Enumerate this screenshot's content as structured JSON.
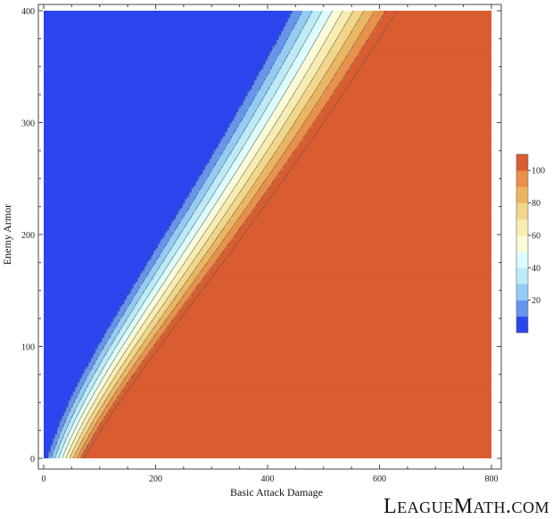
{
  "chart_data": {
    "type": "contour",
    "xlabel": "Basic Attack Damage",
    "ylabel": "Enemy Armor",
    "xlim": [
      0,
      800
    ],
    "ylim": [
      0,
      400
    ],
    "x_ticks": [
      0,
      200,
      400,
      600,
      800
    ],
    "y_ticks": [
      0,
      100,
      200,
      300,
      400
    ],
    "contour_levels": [
      10,
      20,
      30,
      40,
      50,
      60,
      70,
      80,
      90,
      100,
      110
    ],
    "legend_tick_labels": [
      20,
      40,
      60,
      80,
      100
    ],
    "legend_placement": "right",
    "grid": false,
    "band_colors": [
      "#2b45ee",
      "#6695ee",
      "#93ccf5",
      "#bdebf7",
      "#dcfcfd",
      "#fbfbd8",
      "#f8ecb0",
      "#f2d689",
      "#ecb561",
      "#e9904a",
      "#d95d30"
    ]
  },
  "watermark": "LeagueMath.com"
}
